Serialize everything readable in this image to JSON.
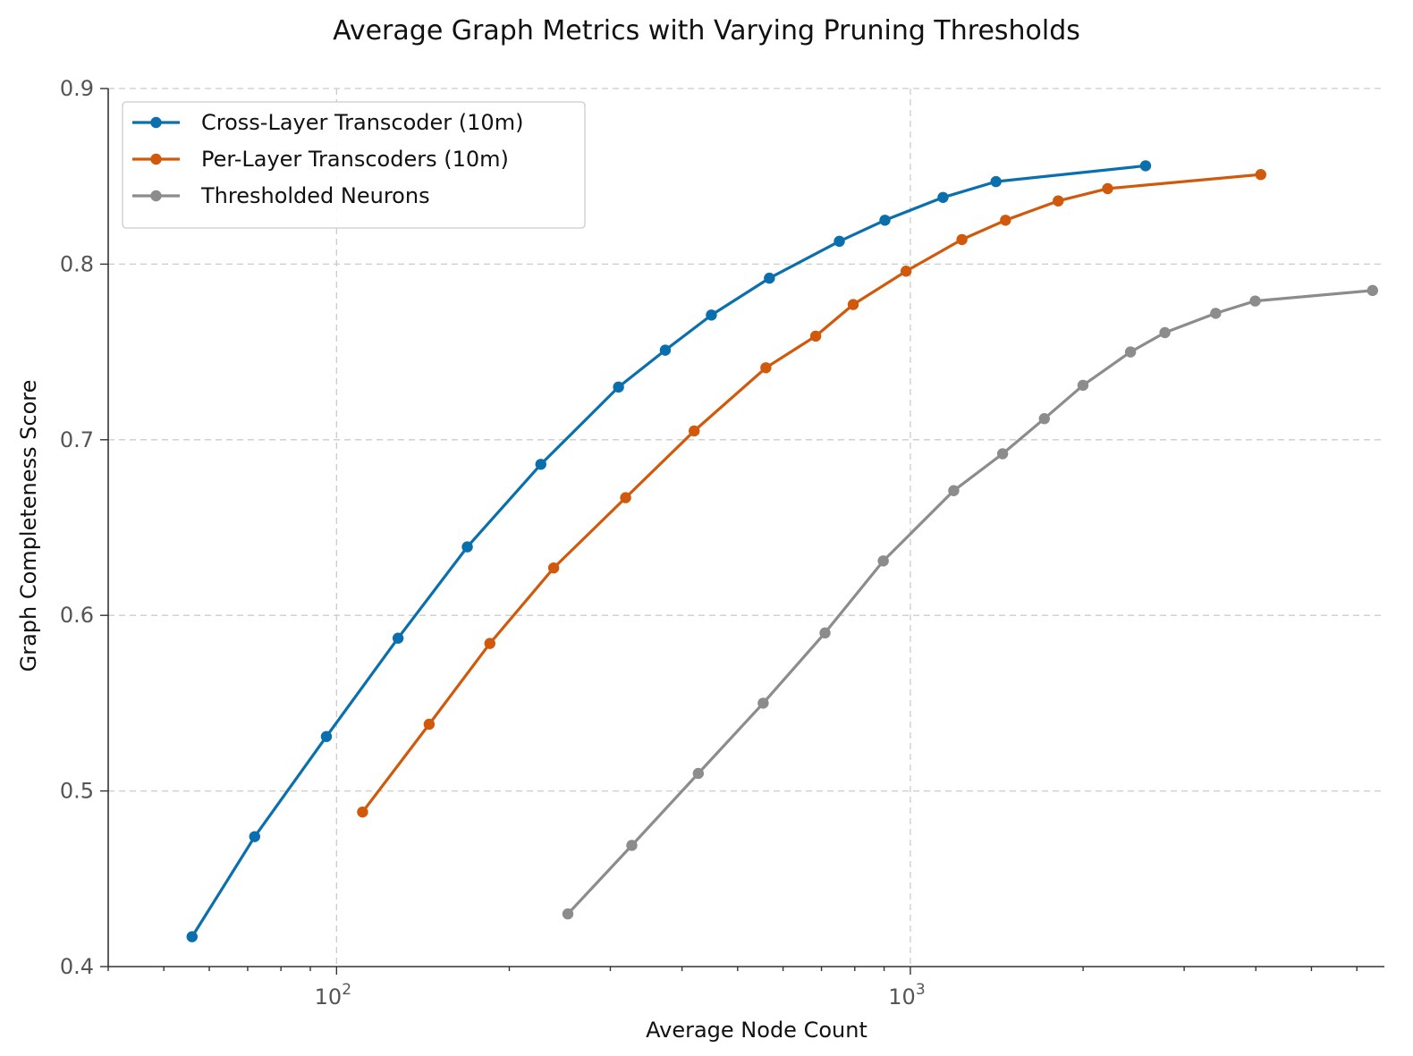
{
  "chart_data": {
    "type": "line",
    "title": "Average Graph Metrics with Varying Pruning Thresholds",
    "xlabel": "Average Node Count",
    "ylabel": "Graph Completeness Score",
    "xscale": "log",
    "xlim": [
      40,
      6700
    ],
    "ylim": [
      0.4,
      0.9
    ],
    "yticks": [
      "0.4",
      "0.5",
      "0.6",
      "0.7",
      "0.8",
      "0.9"
    ],
    "xticks": [
      {
        "base": "10",
        "exp": "2"
      },
      {
        "base": "10",
        "exp": "3"
      }
    ],
    "grid": true,
    "legend_position": "top-left",
    "series": [
      {
        "name": "Cross-Layer Transcoder (10m)",
        "color": "#0a6fad",
        "x": [
          56,
          72,
          96,
          128,
          169,
          227,
          310,
          374,
          450,
          568,
          752,
          903,
          1140,
          1410,
          2570
        ],
        "y": [
          0.417,
          0.474,
          0.531,
          0.587,
          0.639,
          0.686,
          0.73,
          0.751,
          0.771,
          0.792,
          0.813,
          0.825,
          0.838,
          0.847,
          0.856
        ]
      },
      {
        "name": "Per-Layer Transcoders (10m)",
        "color": "#d0590c",
        "x": [
          111,
          145,
          185,
          239,
          319,
          420,
          560,
          684,
          795,
          983,
          1230,
          1465,
          1810,
          2207,
          4080
        ],
        "y": [
          0.488,
          0.538,
          0.584,
          0.627,
          0.667,
          0.705,
          0.741,
          0.759,
          0.777,
          0.796,
          0.814,
          0.825,
          0.836,
          0.843,
          0.851
        ]
      },
      {
        "name": "Thresholded Neurons",
        "color": "#8c8c8c",
        "x": [
          253,
          327,
          427,
          554,
          710,
          897,
          1190,
          1448,
          1712,
          1999,
          2419,
          2777,
          3405,
          3990,
          6390
        ],
        "y": [
          0.43,
          0.469,
          0.51,
          0.55,
          0.59,
          0.631,
          0.671,
          0.692,
          0.712,
          0.731,
          0.75,
          0.761,
          0.772,
          0.779,
          0.785
        ]
      }
    ]
  }
}
